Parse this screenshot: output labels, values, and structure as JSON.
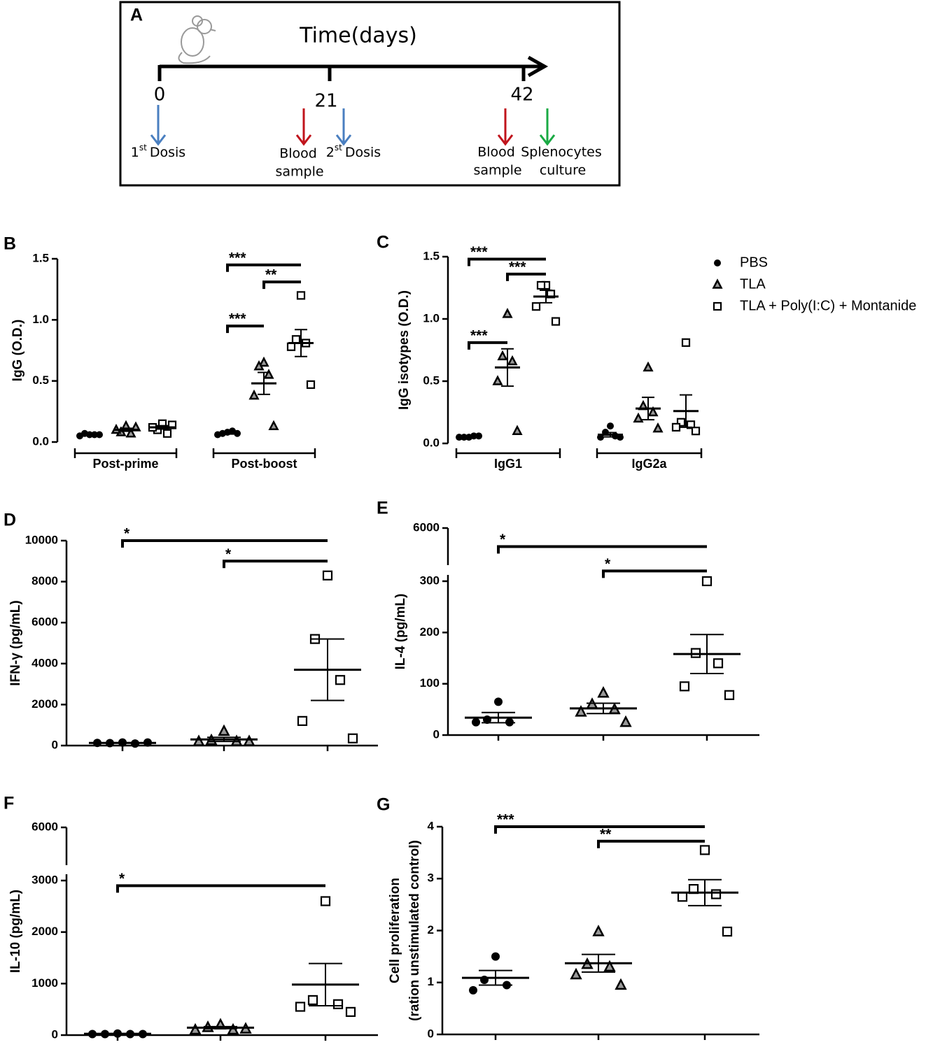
{
  "diagram": {
    "panel": "A",
    "axis_label": "Time(days)",
    "days": [
      "0",
      "21",
      "42"
    ],
    "events": [
      {
        "num": "1",
        "sup": "st",
        "text": "Dosis"
      },
      {
        "lines": [
          "Blood",
          "sample"
        ]
      },
      {
        "num": "2",
        "sup": "st",
        "text": "Dosis"
      },
      {
        "lines": [
          "Blood",
          "sample"
        ]
      },
      {
        "lines": [
          "Splenocytes",
          "culture"
        ]
      }
    ]
  },
  "chart_data": [
    {
      "type": "dotplot",
      "panel": "B",
      "ylabel": [
        "IgG (O.D.)"
      ],
      "ylim": [
        0,
        1.5
      ],
      "yticks": [
        {
          "value": 0,
          "label": "0.0"
        },
        {
          "value": 0.5,
          "label": "0.5"
        },
        {
          "value": 1,
          "label": "1.0"
        },
        {
          "value": 1.5,
          "label": "1.5"
        }
      ],
      "categories": [
        "Post-prime",
        "Post-boost"
      ],
      "series": [
        {
          "marker": "circle",
          "color": "#000000",
          "values": [
            [
              0.06,
              0.07,
              0.06,
              0.05,
              0.06
            ],
            [
              0.08,
              0.07,
              0.09,
              0.06,
              0.07
            ]
          ],
          "mean": [
            0.06,
            0.07
          ],
          "sem": [
            0.004,
            0.005
          ]
        },
        {
          "marker": "triangle",
          "color": "#000000",
          "values": [
            [
              0.13,
              0.08,
              0.07,
              0.1,
              0.12
            ],
            [
              0.65,
              0.62,
              0.55,
              0.38,
              0.13
            ]
          ],
          "mean": [
            0.1,
            0.48
          ],
          "sem": [
            0.012,
            0.09
          ]
        },
        {
          "marker": "square",
          "color": "#000000",
          "values": [
            [
              0.15,
              0.1,
              0.07,
              0.12,
              0.14
            ],
            [
              1.2,
              0.84,
              0.81,
              0.78,
              0.47
            ]
          ],
          "mean": [
            0.12,
            0.81
          ],
          "sem": [
            0.014,
            0.11
          ]
        }
      ],
      "significance": [
        {
          "label": "***",
          "category": 1,
          "groups": [
            0,
            2
          ],
          "y": 1.45
        },
        {
          "label": "**",
          "category": 1,
          "groups": [
            1,
            2
          ],
          "y": 1.31
        },
        {
          "label": "***",
          "category": 1,
          "groups": [
            0,
            1
          ],
          "y": 0.95
        }
      ]
    },
    {
      "type": "dotplot",
      "panel": "C",
      "ylabel": [
        "IgG isotypes (O.D.)"
      ],
      "ylim": [
        0,
        1.5
      ],
      "yticks": [
        {
          "value": 0,
          "label": "0.0"
        },
        {
          "value": 0.5,
          "label": "0.5"
        },
        {
          "value": 1,
          "label": "1.0"
        },
        {
          "value": 1.5,
          "label": "1.5"
        }
      ],
      "categories": [
        "IgG1",
        "IgG2a"
      ],
      "legend": "right",
      "series": [
        {
          "name": "PBS",
          "marker": "circle",
          "color": "#000000",
          "values": [
            [
              0.05,
              0.05,
              0.06,
              0.05,
              0.06
            ],
            [
              0.14,
              0.09,
              0.06,
              0.05,
              0.05
            ]
          ],
          "mean": [
            0.05,
            0.07
          ],
          "sem": [
            0.003,
            0.017
          ]
        },
        {
          "name": "TLA",
          "marker": "triangle",
          "color": "#000000",
          "values": [
            [
              1.04,
              0.7,
              0.66,
              0.5,
              0.1
            ],
            [
              0.61,
              0.3,
              0.25,
              0.2,
              0.12
            ]
          ],
          "mean": [
            0.61,
            0.28
          ],
          "sem": [
            0.15,
            0.09
          ]
        },
        {
          "name": "TLA + Poly(I:C) + Montanide",
          "marker": "square",
          "color": "#000000",
          "values": [
            [
              1.27,
              1.27,
              1.2,
              1.1,
              0.98
            ],
            [
              0.81,
              0.17,
              0.15,
              0.13,
              0.1
            ]
          ],
          "mean": [
            1.18,
            0.26
          ],
          "sem": [
            0.05,
            0.13
          ]
        }
      ],
      "significance": [
        {
          "label": "***",
          "category": 0,
          "groups": [
            0,
            2
          ],
          "y": 1.48
        },
        {
          "label": "***",
          "category": 0,
          "groups": [
            1,
            2
          ],
          "y": 1.36
        },
        {
          "label": "***",
          "category": 0,
          "groups": [
            0,
            1
          ],
          "y": 0.81
        }
      ]
    },
    {
      "type": "dotplot",
      "panel": "D",
      "ylabel": [
        "IFN-γ (pg/mL)"
      ],
      "ylim": [
        0,
        10000
      ],
      "yticks": [
        0,
        2000,
        4000,
        6000,
        8000,
        10000
      ],
      "series": [
        {
          "marker": "circle",
          "color": "#000000",
          "values": [
            [
              150,
              120,
              100,
              130,
              150
            ]
          ],
          "mean": [
            130
          ],
          "sem": [
            10
          ]
        },
        {
          "marker": "triangle",
          "color": "#000000",
          "values": [
            [
              700,
              250,
              200,
              200,
              200
            ]
          ],
          "mean": [
            300
          ],
          "sem": [
            100
          ]
        },
        {
          "marker": "square",
          "color": "#000000",
          "values": [
            [
              8300,
              5200,
              3200,
              1200,
              350
            ]
          ],
          "mean": [
            3700
          ],
          "sem": [
            1500
          ]
        }
      ],
      "significance": [
        {
          "label": "*",
          "category": 0,
          "groups": [
            0,
            2
          ],
          "y": 10000
        },
        {
          "label": "*",
          "category": 0,
          "groups": [
            1,
            2
          ],
          "y": 9000
        }
      ]
    },
    {
      "type": "dotplot",
      "panel": "E",
      "ylabel": [
        "IL-4 (pg/mL)"
      ],
      "ylim": [
        0,
        300
      ],
      "yticks": [
        0,
        100,
        200,
        300
      ],
      "ybreak": {
        "ylim": [
          5000,
          6000
        ],
        "yticks": [
          6000
        ]
      },
      "series": [
        {
          "marker": "circle",
          "color": "#000000",
          "values": [
            [
              65,
              30,
              25,
              25
            ]
          ],
          "mean": [
            34
          ],
          "sem": [
            10
          ]
        },
        {
          "marker": "triangle",
          "color": "#000000",
          "values": [
            [
              82,
              60,
              50,
              45,
              25
            ]
          ],
          "mean": [
            52
          ],
          "sem": [
            10
          ]
        },
        {
          "marker": "square",
          "color": "#000000",
          "values": [
            [
              300,
              160,
              140,
              95,
              78
            ]
          ],
          "mean": [
            158
          ],
          "sem": [
            38
          ]
        }
      ],
      "significance": [
        {
          "label": "*",
          "category": 0,
          "groups": [
            0,
            2
          ],
          "y": 5500
        },
        {
          "label": "*",
          "category": 0,
          "groups": [
            1,
            2
          ],
          "y": 320
        }
      ]
    },
    {
      "type": "dotplot",
      "panel": "F",
      "ylabel": [
        "IL-10 (pg/mL)"
      ],
      "ylim": [
        0,
        3000
      ],
      "yticks": [
        0,
        1000,
        2000,
        3000
      ],
      "ybreak": {
        "ylim": [
          5000,
          6000
        ],
        "yticks": [
          6000
        ]
      },
      "series": [
        {
          "marker": "circle",
          "color": "#000000",
          "values": [
            [
              30,
              20,
              20,
              20,
              20
            ]
          ],
          "mean": [
            25
          ],
          "sem": [
            5
          ]
        },
        {
          "marker": "triangle",
          "color": "#000000",
          "values": [
            [
              200,
              150,
              100,
              100,
              120
            ]
          ],
          "mean": [
            145
          ],
          "sem": [
            20
          ]
        },
        {
          "marker": "square",
          "color": "#000000",
          "values": [
            [
              2600,
              680,
              600,
              550,
              450
            ]
          ],
          "mean": [
            980
          ],
          "sem": [
            410
          ]
        }
      ],
      "significance": [
        {
          "label": "*",
          "category": 0,
          "groups": [
            0,
            2
          ],
          "y": 2900
        }
      ]
    },
    {
      "type": "dotplot",
      "panel": "G",
      "ylabel": [
        "Cell proliferation",
        "(ration unstimulated control)"
      ],
      "ylim": [
        0,
        4
      ],
      "yticks": [
        0,
        1,
        2,
        3,
        4
      ],
      "series": [
        {
          "marker": "circle",
          "color": "#000000",
          "values": [
            [
              1.5,
              1.05,
              0.95,
              0.85
            ]
          ],
          "mean": [
            1.09
          ],
          "sem": [
            0.14
          ]
        },
        {
          "marker": "triangle",
          "color": "#000000",
          "values": [
            [
              1.98,
              1.35,
              1.3,
              1.15,
              0.95
            ]
          ],
          "mean": [
            1.37
          ],
          "sem": [
            0.17
          ]
        },
        {
          "marker": "square",
          "color": "#000000",
          "values": [
            [
              3.55,
              2.8,
              2.7,
              2.65,
              1.98
            ]
          ],
          "mean": [
            2.73
          ],
          "sem": [
            0.25
          ]
        }
      ],
      "significance": [
        {
          "label": "***",
          "category": 0,
          "groups": [
            0,
            2
          ],
          "y": 4
        },
        {
          "label": "**",
          "category": 0,
          "groups": [
            1,
            2
          ],
          "y": 3.72
        }
      ]
    }
  ]
}
